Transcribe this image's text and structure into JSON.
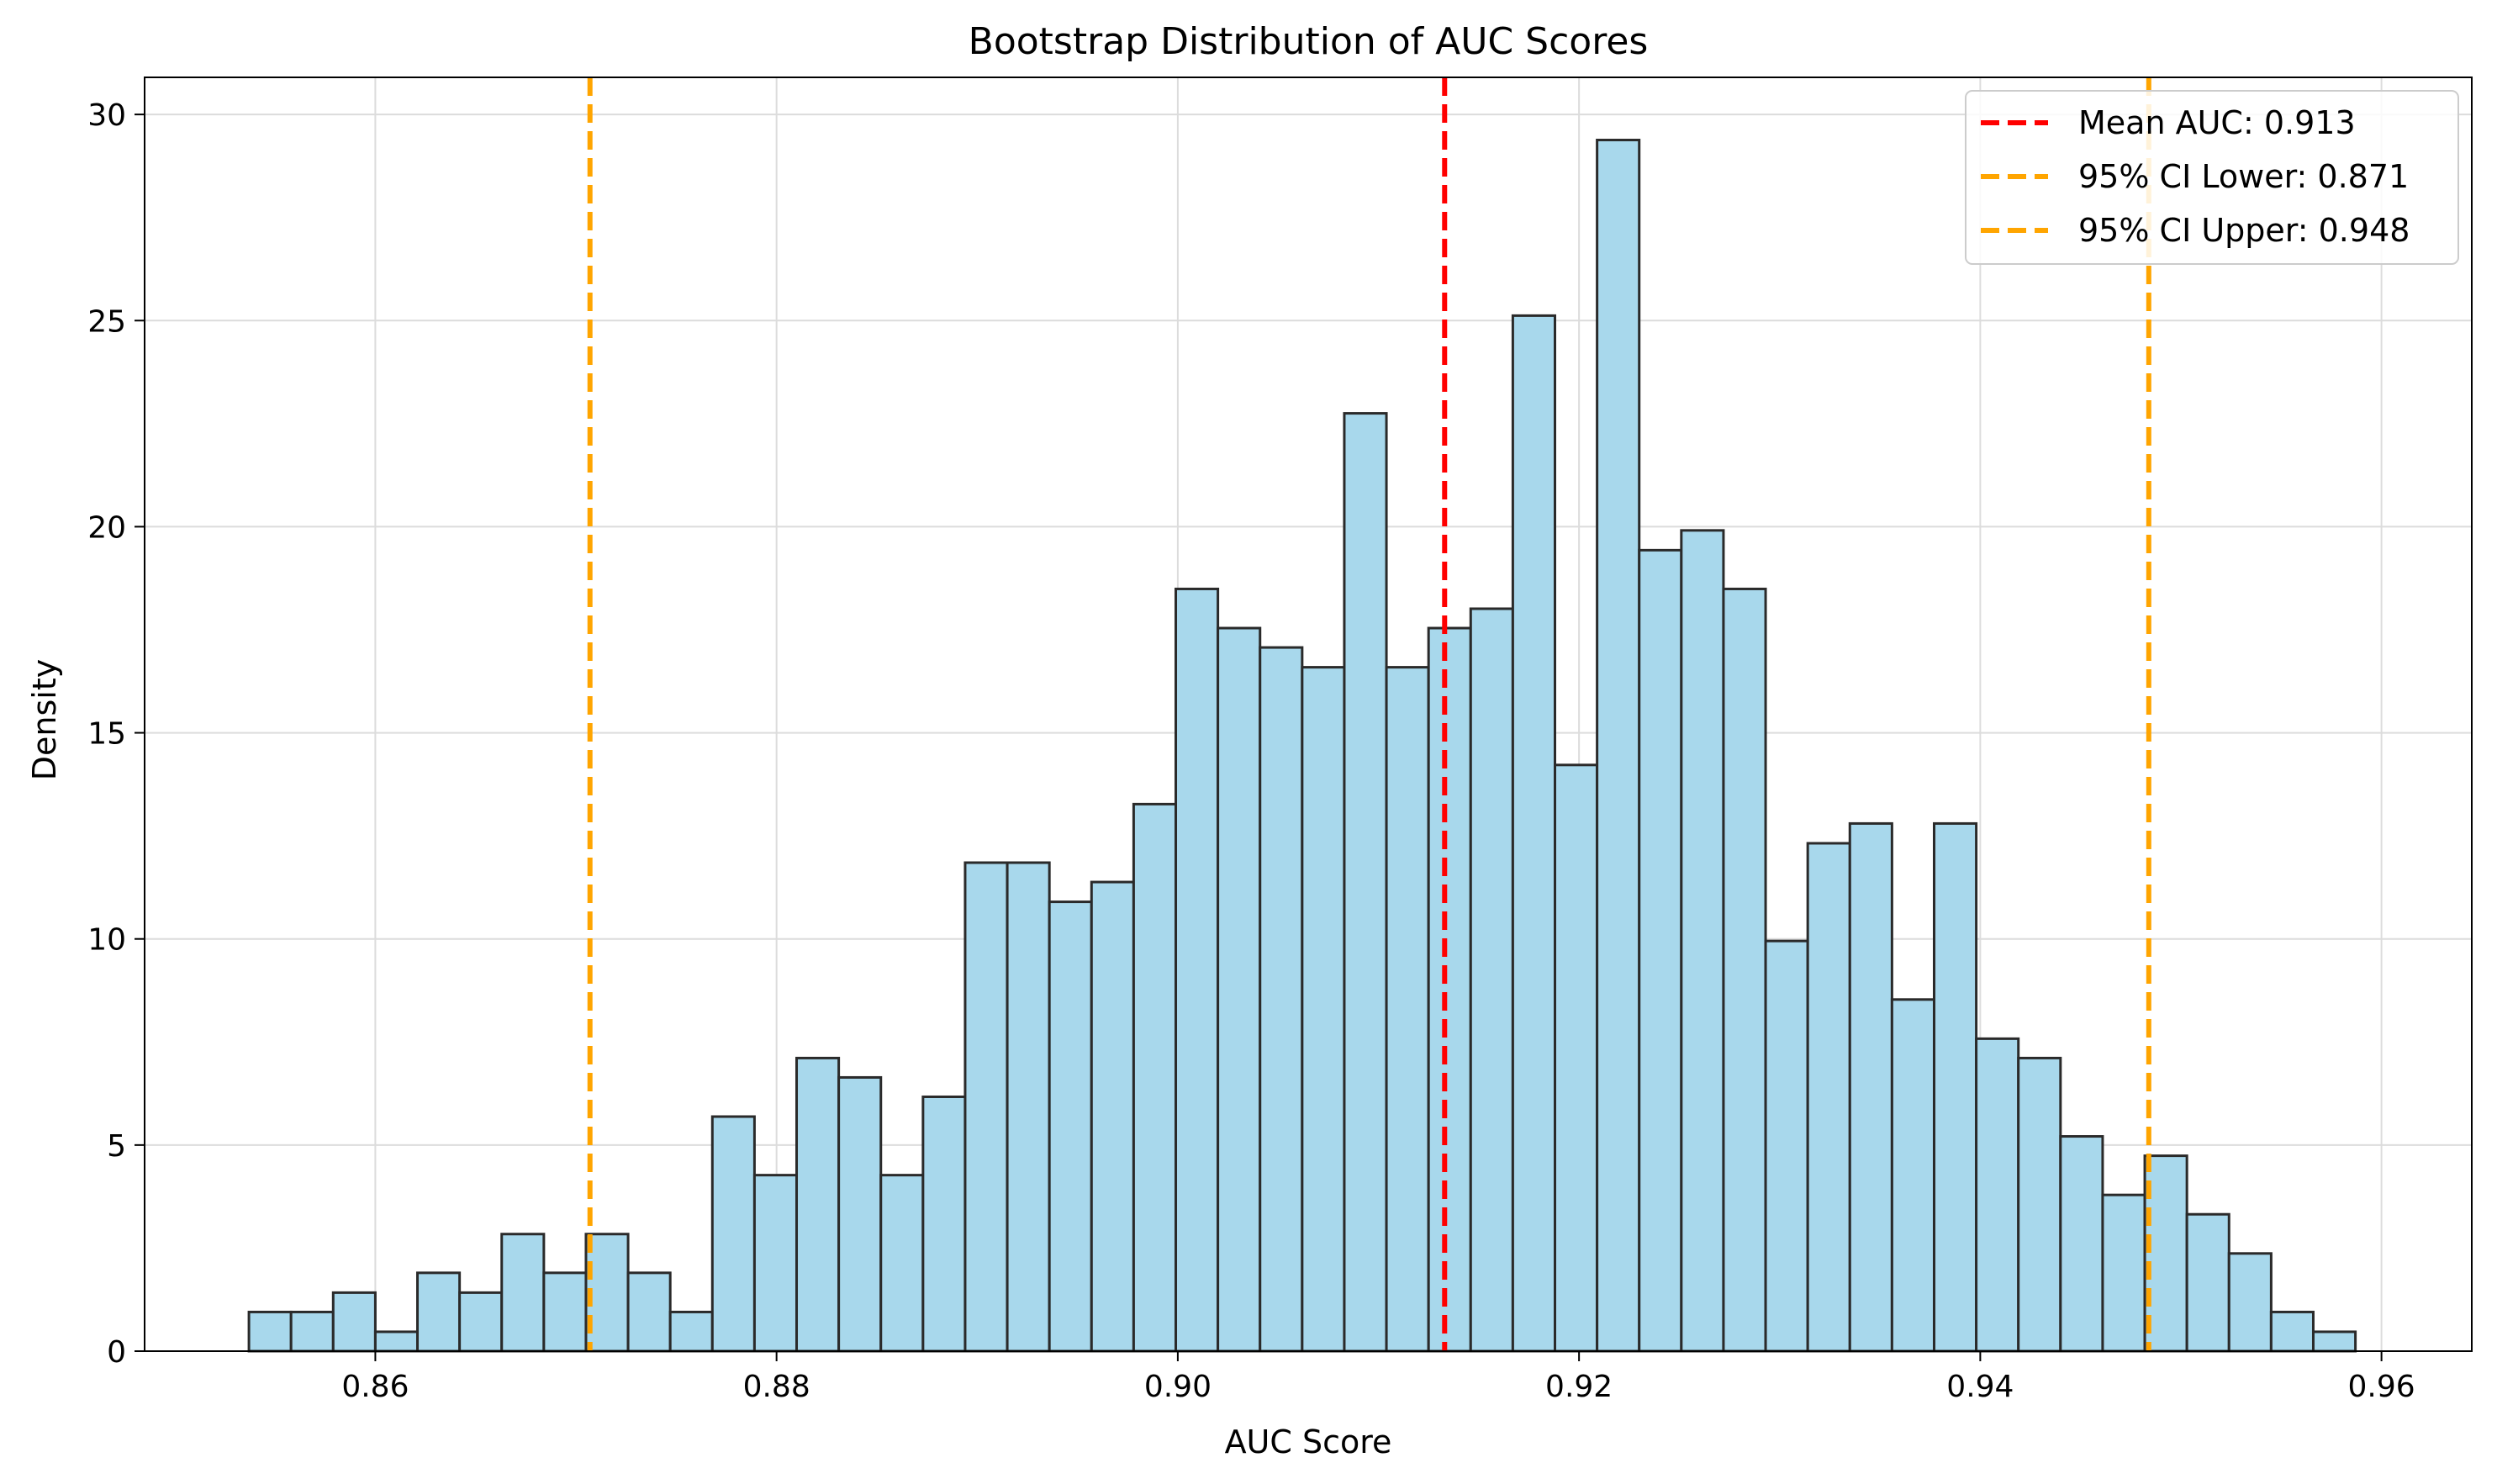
{
  "chart_data": {
    "type": "bar",
    "title": "Bootstrap Distribution of AUC Scores",
    "xlabel": "AUC Score",
    "ylabel": "Density",
    "xlim": [
      0.8485,
      0.9645
    ],
    "ylim": [
      0,
      30.9
    ],
    "xticks": [
      0.86,
      0.88,
      0.9,
      0.92,
      0.94,
      0.96
    ],
    "xtick_labels": [
      "0.86",
      "0.88",
      "0.90",
      "0.92",
      "0.94",
      "0.96"
    ],
    "yticks": [
      0,
      5,
      10,
      15,
      20,
      25,
      30
    ],
    "ytick_labels": [
      "0",
      "5",
      "10",
      "15",
      "20",
      "25",
      "30"
    ],
    "grid": true,
    "legend_position": "top-right",
    "bin_edges": [
      0.8537,
      0.8558,
      0.8579,
      0.86,
      0.8621,
      0.8642,
      0.8663,
      0.8684,
      0.8705,
      0.8726,
      0.8747,
      0.8768,
      0.8789,
      0.881,
      0.8831,
      0.8852,
      0.8873,
      0.8894,
      0.8915,
      0.8936,
      0.8957,
      0.8978,
      0.8999,
      0.902,
      0.9041,
      0.9062,
      0.9083,
      0.9104,
      0.9125,
      0.9146,
      0.9167,
      0.9188,
      0.9209,
      0.923,
      0.9251,
      0.9272,
      0.9293,
      0.9314,
      0.9335,
      0.9356,
      0.9377,
      0.9398,
      0.9419,
      0.944,
      0.9461,
      0.9482,
      0.9503,
      0.9524,
      0.9545,
      0.9566,
      0.9587
    ],
    "values": [
      0.95,
      0.95,
      1.42,
      0.47,
      1.9,
      1.42,
      2.84,
      1.9,
      2.84,
      1.9,
      0.95,
      5.69,
      4.27,
      7.11,
      6.64,
      4.27,
      6.17,
      11.85,
      11.85,
      10.9,
      11.38,
      13.27,
      18.49,
      17.54,
      17.07,
      16.59,
      22.75,
      16.59,
      17.54,
      18.01,
      25.12,
      14.22,
      29.38,
      19.43,
      19.91,
      18.49,
      9.95,
      12.32,
      12.8,
      8.53,
      12.8,
      7.58,
      7.11,
      5.21,
      3.79,
      4.74,
      3.32,
      2.37,
      0.95,
      0.47
    ],
    "reference_lines": [
      {
        "name": "Mean AUC: 0.913",
        "x": 0.9133,
        "color": "#ff0000"
      },
      {
        "name": "95% CI Lower: 0.871",
        "x": 0.8707,
        "color": "#ffa500"
      },
      {
        "name": "95% CI Upper: 0.948",
        "x": 0.9484,
        "color": "#ffa500"
      }
    ],
    "bar_fill": "#a8d8ec",
    "bar_edge": "#2a2a2a"
  }
}
